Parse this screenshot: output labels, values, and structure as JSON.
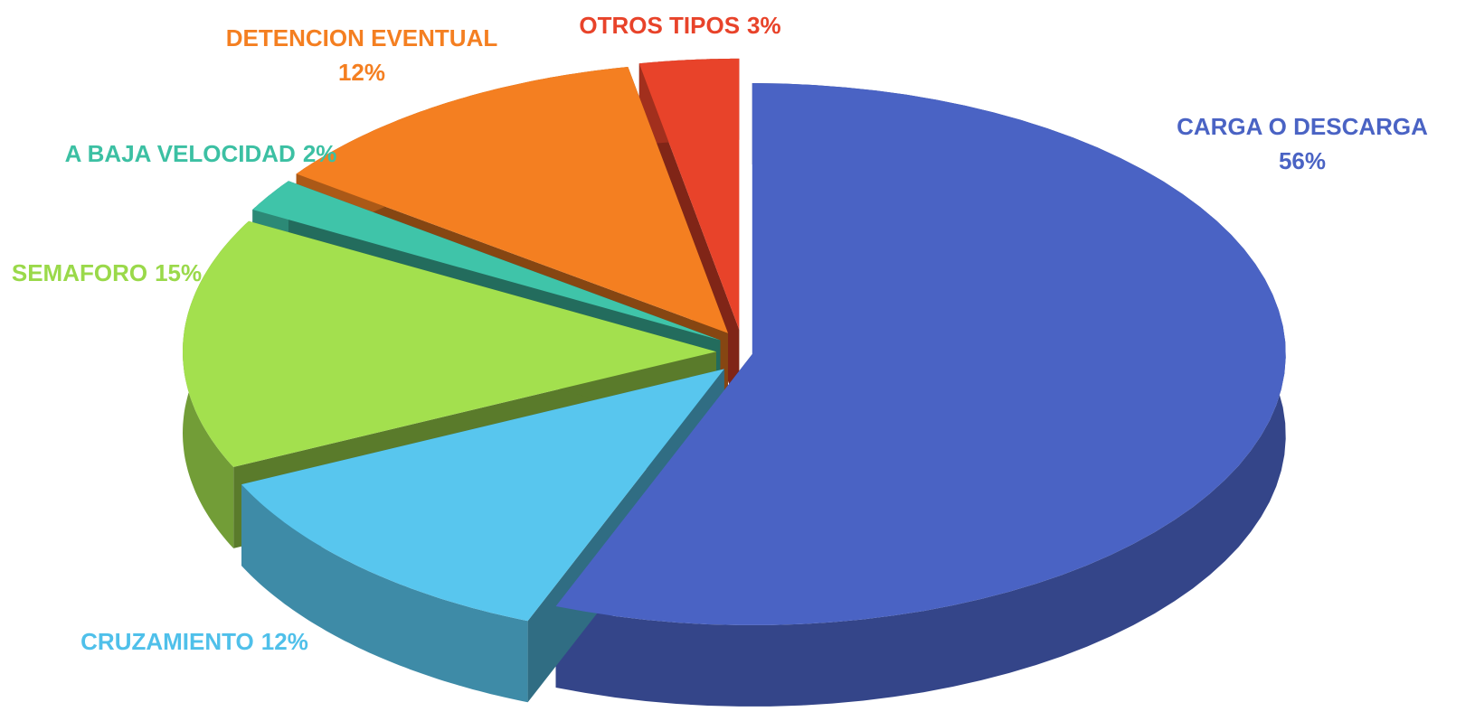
{
  "chart_data": {
    "type": "pie",
    "categories": [
      "CARGA O DESCARGA",
      "CRUZAMIENTO",
      "SEMAFORO",
      "A BAJA VELOCIDAD",
      "DETENCION EVENTUAL",
      "OTROS TIPOS"
    ],
    "values": [
      56,
      12,
      15,
      2,
      12,
      3
    ],
    "value_labels": [
      "56%",
      "12%",
      "15%",
      "2%",
      "12%",
      "3%"
    ],
    "colors": [
      "#4a63c4",
      "#58c6ee",
      "#a3e04e",
      "#3fc4a9",
      "#f47f21",
      "#e8432a"
    ]
  }
}
